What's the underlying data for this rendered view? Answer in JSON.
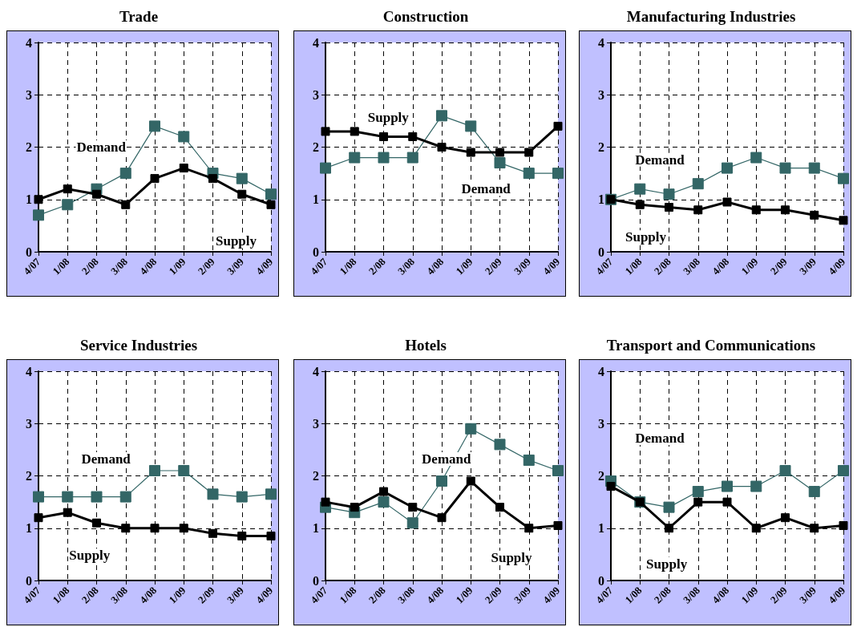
{
  "chart_data": [
    {
      "type": "line",
      "title": "Trade",
      "categories": [
        "4/07",
        "1/08",
        "2/08",
        "3/08",
        "4/08",
        "1/09",
        "2/09",
        "3/09",
        "4/09"
      ],
      "ylim": [
        0,
        4
      ],
      "yticks": [
        0,
        1,
        2,
        3,
        4
      ],
      "grid": true,
      "legend": false,
      "marker": "square",
      "series": [
        {
          "name": "Demand",
          "color": "#336666",
          "values": [
            0.7,
            0.9,
            1.2,
            1.5,
            2.4,
            2.2,
            1.5,
            1.4,
            1.1
          ]
        },
        {
          "name": "Supply",
          "color": "#000000",
          "values": [
            1.0,
            1.2,
            1.1,
            0.9,
            1.4,
            1.6,
            1.4,
            1.1,
            0.9
          ]
        }
      ]
    },
    {
      "type": "line",
      "title": "Construction",
      "categories": [
        "4/07",
        "1/08",
        "2/08",
        "3/08",
        "4/08",
        "1/09",
        "2/09",
        "3/09",
        "4/09"
      ],
      "ylim": [
        0,
        4
      ],
      "yticks": [
        0,
        1,
        2,
        3,
        4
      ],
      "grid": true,
      "legend": false,
      "marker": "square",
      "series": [
        {
          "name": "Demand",
          "color": "#336666",
          "values": [
            1.6,
            1.8,
            1.8,
            1.8,
            2.6,
            2.4,
            1.7,
            1.5,
            1.5
          ]
        },
        {
          "name": "Supply",
          "color": "#000000",
          "values": [
            2.3,
            2.3,
            2.2,
            2.2,
            2.0,
            1.9,
            1.9,
            1.9,
            2.4
          ]
        }
      ]
    },
    {
      "type": "line",
      "title": "Manufacturing Industries",
      "categories": [
        "4/07",
        "1/08",
        "2/08",
        "3/08",
        "4/08",
        "1/09",
        "2/09",
        "3/09",
        "4/09"
      ],
      "ylim": [
        0,
        4
      ],
      "yticks": [
        0,
        1,
        2,
        3,
        4
      ],
      "grid": true,
      "legend": false,
      "marker": "square",
      "series": [
        {
          "name": "Demand",
          "color": "#336666",
          "values": [
            1.0,
            1.2,
            1.1,
            1.3,
            1.6,
            1.8,
            1.6,
            1.6,
            1.4
          ]
        },
        {
          "name": "Supply",
          "color": "#000000",
          "values": [
            1.0,
            0.9,
            0.85,
            0.8,
            0.95,
            0.8,
            0.8,
            0.7,
            0.6
          ]
        }
      ]
    },
    {
      "type": "line",
      "title": "Service Industries",
      "categories": [
        "4/07",
        "1/08",
        "2/08",
        "3/08",
        "4/08",
        "1/09",
        "2/09",
        "3/09",
        "4/09"
      ],
      "ylim": [
        0,
        4
      ],
      "yticks": [
        0,
        1,
        2,
        3,
        4
      ],
      "grid": true,
      "legend": false,
      "marker": "square",
      "series": [
        {
          "name": "Demand",
          "color": "#336666",
          "values": [
            1.6,
            1.6,
            1.6,
            1.6,
            2.1,
            2.1,
            1.65,
            1.6,
            1.65
          ]
        },
        {
          "name": "Supply",
          "color": "#000000",
          "values": [
            1.2,
            1.3,
            1.1,
            1.0,
            1.0,
            1.0,
            0.9,
            0.85,
            0.85
          ]
        }
      ]
    },
    {
      "type": "line",
      "title": "Hotels",
      "categories": [
        "4/07",
        "1/08",
        "2/08",
        "3/08",
        "4/08",
        "1/09",
        "2/09",
        "3/09",
        "4/09"
      ],
      "ylim": [
        0,
        4
      ],
      "yticks": [
        0,
        1,
        2,
        3,
        4
      ],
      "grid": true,
      "legend": false,
      "marker": "square",
      "series": [
        {
          "name": "Demand",
          "color": "#336666",
          "values": [
            1.4,
            1.3,
            1.5,
            1.1,
            1.9,
            2.9,
            2.6,
            2.3,
            2.1
          ]
        },
        {
          "name": "Supply",
          "color": "#000000",
          "values": [
            1.5,
            1.4,
            1.7,
            1.4,
            1.2,
            1.9,
            1.4,
            1.0,
            1.05
          ]
        }
      ]
    },
    {
      "type": "line",
      "title": "Transport and Communications",
      "categories": [
        "4/07",
        "1/08",
        "2/08",
        "3/08",
        "4/08",
        "1/09",
        "2/09",
        "3/09",
        "4/09"
      ],
      "ylim": [
        0,
        4
      ],
      "yticks": [
        0,
        1,
        2,
        3,
        4
      ],
      "grid": true,
      "legend": false,
      "marker": "square",
      "series": [
        {
          "name": "Demand",
          "color": "#336666",
          "values": [
            1.9,
            1.5,
            1.4,
            1.7,
            1.8,
            1.8,
            2.1,
            1.7,
            2.1
          ]
        },
        {
          "name": "Supply",
          "color": "#000000",
          "values": [
            1.8,
            1.5,
            1.0,
            1.5,
            1.5,
            1.0,
            1.2,
            1.0,
            1.05
          ]
        }
      ]
    }
  ]
}
